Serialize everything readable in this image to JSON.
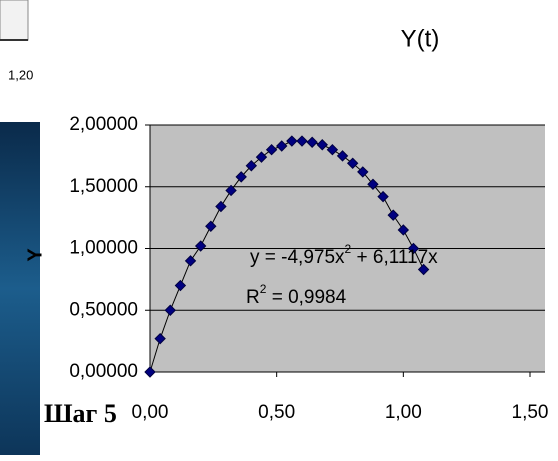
{
  "left_panel": {
    "label": "1,20"
  },
  "slide_text": "Шаг 5",
  "chart_data": {
    "type": "scatter",
    "title": "Y(t)",
    "y_label": "Y",
    "x": [
      0,
      0.04,
      0.08,
      0.12,
      0.16,
      0.2,
      0.24,
      0.28,
      0.32,
      0.36,
      0.4,
      0.44,
      0.48,
      0.52,
      0.56,
      0.6,
      0.64,
      0.68,
      0.72,
      0.76,
      0.8,
      0.84,
      0.88,
      0.92,
      0.96,
      1.0,
      1.04,
      1.08
    ],
    "series": [
      {
        "name": "Y",
        "color": "#000080",
        "values": [
          0,
          0.27,
          0.5,
          0.7,
          0.9,
          1.02,
          1.18,
          1.34,
          1.47,
          1.58,
          1.67,
          1.74,
          1.8,
          1.83,
          1.87,
          1.87,
          1.86,
          1.84,
          1.8,
          1.75,
          1.69,
          1.62,
          1.52,
          1.42,
          1.27,
          1.15,
          1.0,
          0.83
        ]
      }
    ],
    "trendline": {
      "equation": [
        "y = -4,975x",
        "2",
        " + 6,1117x"
      ],
      "r_squared": [
        "R",
        "2",
        " = 0,9984"
      ]
    },
    "xlim": [
      0,
      1.5
    ],
    "ylim": [
      0,
      2
    ],
    "xticks": [
      {
        "value": 0,
        "label": "0,00"
      },
      {
        "value": 0.5,
        "label": "0,50"
      },
      {
        "value": 1,
        "label": "1,00"
      },
      {
        "value": 1.5,
        "label": "1,50"
      }
    ],
    "yticks": [
      {
        "value": 0,
        "label": "0,00000"
      },
      {
        "value": 0.5,
        "label": "0,50000"
      },
      {
        "value": 1,
        "label": "1,00000"
      },
      {
        "value": 1.5,
        "label": "1,50000"
      },
      {
        "value": 2,
        "label": "2,00000"
      }
    ],
    "grid": true
  }
}
